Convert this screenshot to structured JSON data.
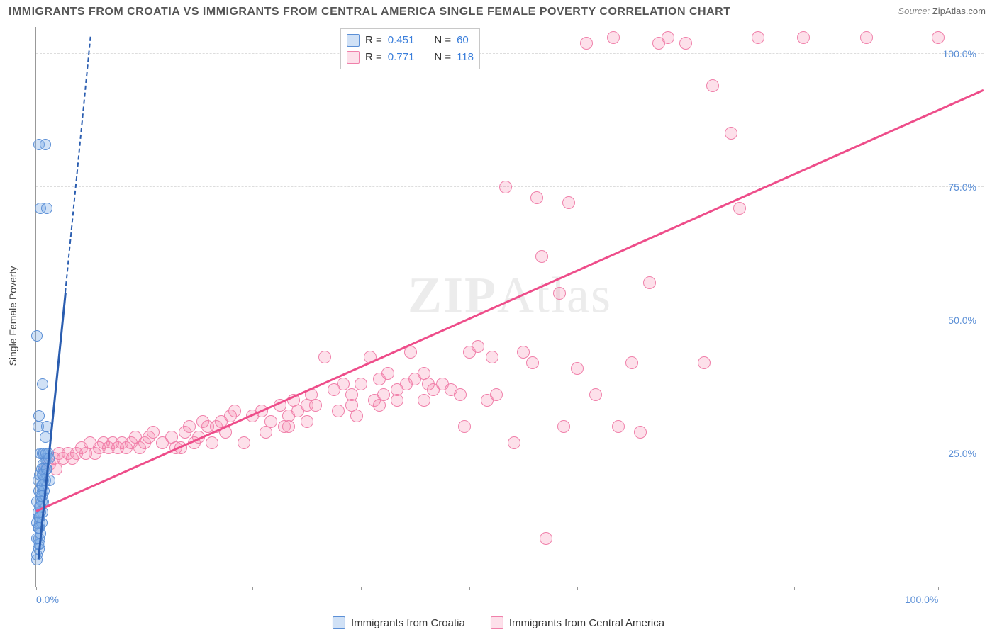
{
  "title": "IMMIGRANTS FROM CROATIA VS IMMIGRANTS FROM CENTRAL AMERICA SINGLE FEMALE POVERTY CORRELATION CHART",
  "source_label": "Source:",
  "source_value": "ZipAtlas.com",
  "watermark_a": "ZIP",
  "watermark_b": "Atlas",
  "y_axis_title": "Single Female Poverty",
  "plot": {
    "xlim": [
      0,
      105
    ],
    "ylim": [
      0,
      105
    ],
    "grid_color": "#dddddd",
    "axis_color": "#999999",
    "y_ticks": [
      25,
      50,
      75,
      100
    ],
    "y_tick_labels": [
      "25.0%",
      "50.0%",
      "75.0%",
      "100.0%"
    ],
    "x_ticks": [
      0,
      12,
      24,
      36,
      48,
      60,
      72,
      84,
      100
    ],
    "x_tick_labels": {
      "0": "0.0%",
      "100": "100.0%"
    }
  },
  "series": {
    "croatia": {
      "label": "Immigrants from Croatia",
      "marker_color": "#5b8fd6",
      "fill_color": "rgba(120,170,230,0.35)",
      "line_color": "#2a5db0",
      "R": "0.451",
      "N": "60",
      "reg_line": {
        "x1": 0.2,
        "y1": 5,
        "x2": 3.2,
        "y2": 55
      },
      "reg_dash": {
        "x1": 3.2,
        "y1": 55,
        "x2": 6.0,
        "y2": 103
      },
      "points": [
        [
          0.1,
          5
        ],
        [
          0.1,
          6
        ],
        [
          0.3,
          7
        ],
        [
          0.2,
          8
        ],
        [
          0.4,
          8
        ],
        [
          0.1,
          9
        ],
        [
          0.3,
          9
        ],
        [
          0.5,
          10
        ],
        [
          0.2,
          11
        ],
        [
          0.4,
          12
        ],
        [
          0.6,
          12
        ],
        [
          0.3,
          13
        ],
        [
          0.5,
          14
        ],
        [
          0.7,
          14
        ],
        [
          0.4,
          15
        ],
        [
          0.6,
          16
        ],
        [
          0.8,
          16
        ],
        [
          0.5,
          17
        ],
        [
          0.7,
          18
        ],
        [
          0.9,
          18
        ],
        [
          0.6,
          19
        ],
        [
          0.8,
          20
        ],
        [
          1.0,
          20
        ],
        [
          0.7,
          21
        ],
        [
          0.9,
          22
        ],
        [
          1.1,
          22
        ],
        [
          0.8,
          23
        ],
        [
          1.0,
          24
        ],
        [
          1.2,
          24
        ],
        [
          0.5,
          25
        ],
        [
          0.7,
          25
        ],
        [
          0.9,
          25
        ],
        [
          1.1,
          25
        ],
        [
          1.3,
          25
        ],
        [
          0.2,
          20
        ],
        [
          0.4,
          21
        ],
        [
          0.6,
          22
        ],
        [
          0.3,
          18
        ],
        [
          0.1,
          16
        ],
        [
          0.2,
          14
        ],
        [
          0.1,
          12
        ],
        [
          0.3,
          11
        ],
        [
          0.4,
          13
        ],
        [
          0.5,
          15
        ],
        [
          0.6,
          17
        ],
        [
          0.7,
          19
        ],
        [
          0.8,
          21
        ],
        [
          0.2,
          30
        ],
        [
          0.3,
          32
        ],
        [
          0.7,
          38
        ],
        [
          0.1,
          47
        ],
        [
          1.2,
          30
        ],
        [
          1.0,
          28
        ],
        [
          1.4,
          24
        ],
        [
          1.2,
          22
        ],
        [
          1.5,
          20
        ],
        [
          0.5,
          71
        ],
        [
          1.2,
          71
        ],
        [
          0.3,
          83
        ],
        [
          1.0,
          83
        ]
      ]
    },
    "central_america": {
      "label": "Immigrants from Central America",
      "marker_color": "#f080aa",
      "fill_color": "rgba(246,130,170,0.25)",
      "line_color": "#ee4d8a",
      "R": "0.771",
      "N": "118",
      "reg_line": {
        "x1": 0,
        "y1": 14,
        "x2": 105,
        "y2": 93
      },
      "reg_dash": null,
      "points": [
        [
          1,
          22
        ],
        [
          1.5,
          23
        ],
        [
          2,
          24
        ],
        [
          2.2,
          22
        ],
        [
          2.5,
          25
        ],
        [
          3,
          24
        ],
        [
          3.5,
          25
        ],
        [
          4,
          24
        ],
        [
          4.5,
          25
        ],
        [
          5,
          26
        ],
        [
          5.5,
          25
        ],
        [
          6,
          27
        ],
        [
          6.5,
          25
        ],
        [
          7,
          26
        ],
        [
          7.5,
          27
        ],
        [
          8,
          26
        ],
        [
          8.5,
          27
        ],
        [
          9,
          26
        ],
        [
          9.5,
          27
        ],
        [
          10,
          26
        ],
        [
          10.5,
          27
        ],
        [
          11,
          28
        ],
        [
          11.5,
          26
        ],
        [
          12,
          27
        ],
        [
          12.5,
          28
        ],
        [
          13,
          29
        ],
        [
          14,
          27
        ],
        [
          15,
          28
        ],
        [
          15.5,
          26
        ],
        [
          16,
          26
        ],
        [
          16.5,
          29
        ],
        [
          17,
          30
        ],
        [
          17.5,
          27
        ],
        [
          18,
          28
        ],
        [
          18.5,
          31
        ],
        [
          19,
          30
        ],
        [
          19.5,
          27
        ],
        [
          20,
          30
        ],
        [
          20.5,
          31
        ],
        [
          21,
          29
        ],
        [
          21.5,
          32
        ],
        [
          22,
          33
        ],
        [
          23,
          27
        ],
        [
          24,
          32
        ],
        [
          25,
          33
        ],
        [
          25.5,
          29
        ],
        [
          26,
          31
        ],
        [
          27,
          34
        ],
        [
          27.5,
          30
        ],
        [
          28,
          32
        ],
        [
          28.5,
          35
        ],
        [
          29,
          33
        ],
        [
          30,
          31
        ],
        [
          30.5,
          36
        ],
        [
          31,
          34
        ],
        [
          32,
          43
        ],
        [
          33,
          37
        ],
        [
          33.5,
          33
        ],
        [
          34,
          38
        ],
        [
          35,
          36
        ],
        [
          35.5,
          32
        ],
        [
          36,
          38
        ],
        [
          37,
          43
        ],
        [
          37.5,
          35
        ],
        [
          38,
          39
        ],
        [
          38.5,
          36
        ],
        [
          39,
          40
        ],
        [
          40,
          37
        ],
        [
          41,
          38
        ],
        [
          41.5,
          44
        ],
        [
          42,
          39
        ],
        [
          43,
          40
        ],
        [
          43.5,
          38
        ],
        [
          44,
          37
        ],
        [
          45,
          38
        ],
        [
          46,
          37
        ],
        [
          47,
          36
        ],
        [
          47.5,
          30
        ],
        [
          48,
          44
        ],
        [
          49,
          45
        ],
        [
          50,
          35
        ],
        [
          50.5,
          43
        ],
        [
          51,
          36
        ],
        [
          52,
          75
        ],
        [
          53,
          27
        ],
        [
          54,
          44
        ],
        [
          55,
          42
        ],
        [
          55.5,
          73
        ],
        [
          56,
          62
        ],
        [
          56.5,
          9
        ],
        [
          58,
          55
        ],
        [
          58.5,
          30
        ],
        [
          59,
          72
        ],
        [
          60,
          41
        ],
        [
          61,
          102
        ],
        [
          62,
          36
        ],
        [
          64,
          103
        ],
        [
          64.5,
          30
        ],
        [
          66,
          42
        ],
        [
          67,
          29
        ],
        [
          68,
          57
        ],
        [
          69,
          102
        ],
        [
          70,
          103
        ],
        [
          72,
          102
        ],
        [
          74,
          42
        ],
        [
          75,
          94
        ],
        [
          77,
          85
        ],
        [
          78,
          71
        ],
        [
          80,
          103
        ],
        [
          85,
          103
        ],
        [
          92,
          103
        ],
        [
          100,
          103
        ],
        [
          35,
          34
        ],
        [
          38,
          34
        ],
        [
          40,
          35
        ],
        [
          43,
          35
        ],
        [
          28,
          30
        ],
        [
          30,
          34
        ]
      ]
    }
  },
  "legend_labels": {
    "R": "R =",
    "N": "N ="
  }
}
